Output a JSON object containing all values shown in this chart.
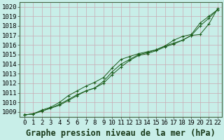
{
  "title": "Graphe pression niveau de la mer (hPa)",
  "x_labels": [
    "0",
    "1",
    "2",
    "3",
    "4",
    "5",
    "6",
    "7",
    "8",
    "9",
    "10",
    "11",
    "12",
    "13",
    "14",
    "15",
    "16",
    "17",
    "18",
    "19",
    "20",
    "21",
    "22"
  ],
  "x_values": [
    0,
    1,
    2,
    3,
    4,
    5,
    6,
    7,
    8,
    9,
    10,
    11,
    12,
    13,
    14,
    15,
    16,
    17,
    18,
    19,
    20,
    21,
    22
  ],
  "ylim": [
    1008.5,
    1020.5
  ],
  "yticks": [
    1009,
    1010,
    1011,
    1012,
    1013,
    1014,
    1015,
    1016,
    1017,
    1018,
    1019,
    1020
  ],
  "line1": [
    1008.7,
    1008.8,
    1009.1,
    1009.4,
    1009.7,
    1010.2,
    1010.7,
    1011.2,
    1011.5,
    1012.0,
    1012.9,
    1013.7,
    1014.4,
    1014.9,
    1015.1,
    1015.4,
    1015.8,
    1016.1,
    1016.5,
    1017.0,
    1018.0,
    1018.8,
    1019.7
  ],
  "line2": [
    1008.7,
    1008.8,
    1009.2,
    1009.5,
    1010.0,
    1010.7,
    1011.2,
    1011.7,
    1012.1,
    1012.6,
    1013.6,
    1014.5,
    1014.8,
    1015.1,
    1015.3,
    1015.5,
    1015.9,
    1016.2,
    1016.5,
    1017.0,
    1017.1,
    1018.2,
    1019.8
  ],
  "line3": [
    1008.7,
    1008.8,
    1009.1,
    1009.4,
    1009.8,
    1010.3,
    1010.8,
    1011.2,
    1011.5,
    1012.2,
    1013.2,
    1014.0,
    1014.5,
    1015.0,
    1015.2,
    1015.5,
    1015.9,
    1016.5,
    1016.9,
    1017.1,
    1018.3,
    1019.0,
    1019.7
  ],
  "line_color": "#1a5c1a",
  "bg_color": "#c8eee8",
  "grid_color": "#c8aab4",
  "title_fontsize": 8.5,
  "tick_fontsize": 6.5
}
